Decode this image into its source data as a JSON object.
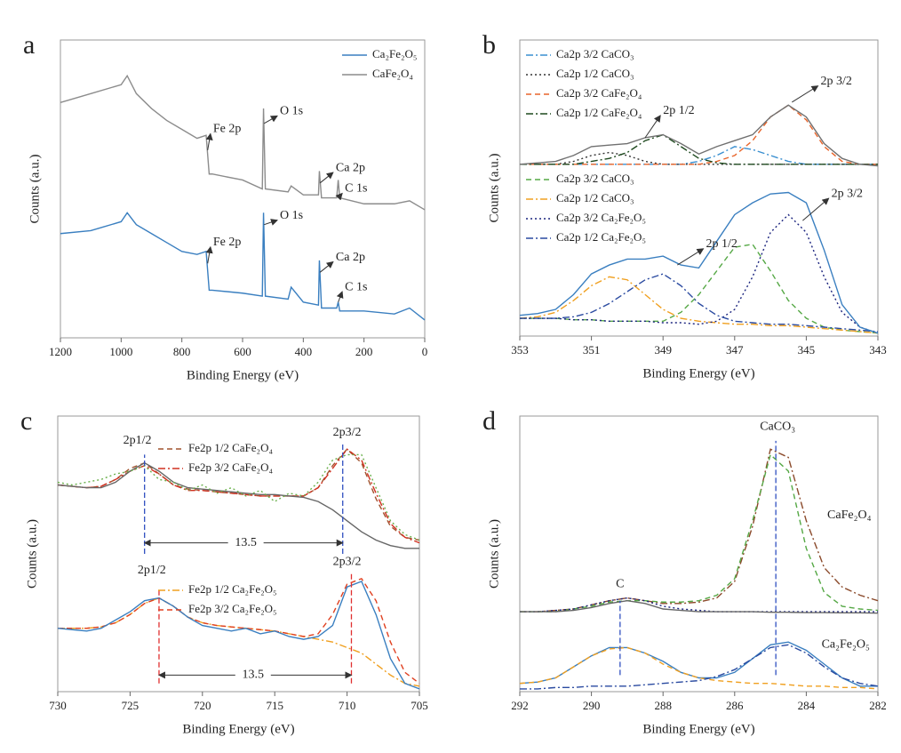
{
  "chart_data": [
    {
      "type": "line",
      "label": "a",
      "x_label": "Binding Energy (eV)",
      "y_label": "Counts (a.u.)",
      "xlim": [
        1200,
        0
      ],
      "xticks": [
        1200,
        1000,
        800,
        600,
        400,
        200,
        0
      ],
      "ylim": [
        0,
        100
      ],
      "x": [
        1200,
        1100,
        1000,
        980,
        950,
        900,
        850,
        800,
        750,
        720,
        710,
        700,
        600,
        535,
        531,
        525,
        450,
        440,
        400,
        350,
        347,
        340,
        290,
        285,
        280,
        200,
        100,
        50,
        0
      ],
      "series": [
        {
          "name": "Ca₂Fe₂O₅",
          "color": "#3a7fc0",
          "dash": "solid",
          "values": [
            35,
            36,
            39,
            42,
            38,
            35,
            32,
            29,
            28,
            29,
            16,
            16,
            15,
            14,
            42,
            14,
            13,
            17,
            12,
            11,
            26,
            10,
            10,
            12,
            9,
            9,
            8,
            10,
            6
          ]
        },
        {
          "name": "CaFe₂O₄",
          "color": "#8c8c8c",
          "dash": "solid",
          "values": [
            79,
            82,
            85,
            88,
            82,
            77,
            73,
            70,
            67,
            68,
            55,
            55,
            53,
            50,
            77,
            50,
            49,
            51,
            48,
            48,
            56,
            47,
            47,
            53,
            47,
            45,
            45,
            46,
            43
          ]
        }
      ],
      "annotations": [
        {
          "text": "Fe 2p",
          "x": 697,
          "y": 70,
          "to": [
            715,
            63
          ]
        },
        {
          "text": "O 1s",
          "x": 477,
          "y": 76,
          "to": [
            529,
            72
          ]
        },
        {
          "text": "Ca 2p",
          "x": 293,
          "y": 57,
          "to": [
            345,
            52
          ]
        },
        {
          "text": "C 1s",
          "x": 263,
          "y": 50,
          "to": [
            285,
            47
          ]
        },
        {
          "text": "Fe 2p",
          "x": 697,
          "y": 32,
          "to": [
            715,
            25
          ]
        },
        {
          "text": "O 1s",
          "x": 477,
          "y": 41,
          "to": [
            529,
            38
          ]
        },
        {
          "text": "Ca 2p",
          "x": 293,
          "y": 27,
          "to": [
            345,
            22
          ]
        },
        {
          "text": "C 1s",
          "x": 263,
          "y": 17,
          "to": [
            285,
            12
          ]
        }
      ]
    },
    {
      "type": "line",
      "label": "b",
      "x_label": "Binding Energy (eV)",
      "y_label": "Counts (a.u.)",
      "xlim": [
        353,
        343
      ],
      "xticks": [
        353,
        351,
        349,
        347,
        345,
        343
      ],
      "ylim": [
        0,
        100
      ],
      "x": [
        353,
        352.5,
        352,
        351.5,
        351,
        350.5,
        350,
        349.5,
        349,
        348.5,
        348,
        347.5,
        347,
        346.5,
        346,
        345.5,
        345,
        344.5,
        344,
        343.5,
        343
      ],
      "series": [
        {
          "name": "Ca2p 3/2 CaCO₃",
          "color": "#3a8fd0",
          "dash": "dashdot",
          "values": [
            58,
            58,
            58,
            58,
            58,
            58,
            58,
            58,
            58,
            58,
            59,
            61,
            64,
            63,
            61,
            59,
            58,
            58,
            58,
            58,
            58
          ]
        },
        {
          "name": "Ca2p 1/2 CaCO₃",
          "color": "#333333",
          "dash": "dotted",
          "values": [
            58,
            58,
            58,
            59,
            61,
            62,
            61,
            59,
            58,
            58,
            58,
            58,
            58,
            58,
            58,
            58,
            58,
            58,
            58,
            58,
            58
          ]
        },
        {
          "name": "Ca2p 3/2 CaFe₂O₄",
          "color": "#e8642a",
          "dash": "dashed",
          "values": [
            58,
            58,
            58,
            58,
            58,
            58,
            58,
            58,
            58,
            58,
            58,
            59,
            61,
            66,
            74,
            78,
            73,
            64,
            59,
            58,
            58
          ]
        },
        {
          "name": "Ca2p 1/2 CaFe₂O₄",
          "color": "#1f4a1f",
          "dash": "dashdot",
          "values": [
            58,
            58,
            58,
            58,
            59,
            60,
            62,
            66,
            68,
            64,
            60,
            58.5,
            58,
            58,
            58,
            58,
            58,
            58,
            58,
            58,
            58
          ]
        },
        {
          "name": "Ca2p 3/2 CaCO₃",
          "color": "#55a845",
          "dash": "dashed",
          "values": [
            6,
            6,
            6,
            5.5,
            5.5,
            5,
            5,
            5,
            5,
            8,
            14,
            22,
            30,
            31,
            22,
            12,
            6,
            3,
            2,
            1.5,
            1
          ]
        },
        {
          "name": "Ca2p 1/2 CaCO₃",
          "color": "#f0a020",
          "dash": "dashdot",
          "values": [
            6,
            6.5,
            8,
            12,
            17,
            20,
            19,
            14,
            9,
            6,
            5,
            4.5,
            4,
            4,
            3.5,
            3.5,
            3,
            2.5,
            2,
            1.5,
            1
          ]
        },
        {
          "name": "Ca2p 3/2 Ca₂Fe₂O₅",
          "color": "#1a237e",
          "dash": "dotted",
          "values": [
            6,
            6,
            6,
            5.5,
            5.5,
            5,
            5,
            5,
            4.5,
            4.5,
            4,
            5,
            9,
            20,
            35,
            41,
            35,
            20,
            8,
            3,
            1
          ]
        },
        {
          "name": "Ca2p 1/2 Ca₂Fe₂O₅",
          "color": "#2a4aa0",
          "dash": "dashdot",
          "values": [
            6,
            6,
            6,
            6.5,
            8,
            11,
            15,
            19,
            21,
            17,
            11,
            7,
            5,
            4.5,
            4,
            4,
            3.5,
            3,
            2.5,
            2,
            1.5
          ]
        },
        {
          "color": "#707070",
          "dash": "solid",
          "values": [
            58,
            58.5,
            59,
            61,
            64,
            64.5,
            65,
            67,
            68,
            65,
            61.5,
            64,
            66,
            68,
            74,
            78,
            74,
            65,
            60,
            58,
            57.5
          ]
        },
        {
          "color": "#3a7fc0",
          "dash": "solid",
          "values": [
            7,
            7.6,
            9,
            14,
            21,
            24,
            26,
            26,
            27,
            24,
            23,
            32,
            41,
            45,
            48,
            48.5,
            45,
            29,
            10.6,
            3,
            1
          ]
        }
      ],
      "annotations": [
        {
          "text": "2p 1/2",
          "x": 349.0,
          "y": 76,
          "to": [
            349.5,
            67
          ]
        },
        {
          "text": "2p 3/2",
          "x": 344.6,
          "y": 86,
          "to": [
            345.4,
            79
          ]
        },
        {
          "text": "2p 1/2",
          "x": 347.8,
          "y": 31,
          "to": [
            348.6,
            24
          ]
        },
        {
          "text": "2p 3/2",
          "x": 344.3,
          "y": 48,
          "to": [
            345.1,
            39
          ]
        }
      ]
    },
    {
      "type": "line",
      "label": "c",
      "x_label": "Binding Energy (eV)",
      "y_label": "Counts (a.u.)",
      "xlim": [
        730,
        705
      ],
      "xticks": [
        730,
        725,
        720,
        715,
        710,
        705
      ],
      "ylim": [
        0,
        100
      ],
      "x": [
        730,
        729,
        728,
        727,
        726,
        725,
        724,
        723,
        722,
        721,
        720,
        719,
        718,
        717,
        716,
        715,
        714,
        713,
        712,
        711,
        710,
        709,
        708,
        707,
        706,
        705
      ],
      "series": [
        {
          "name": "Fe2p 1/2 CaFe₂O₄",
          "color": "#a0522d",
          "dash": "dashed",
          "values": [
            75,
            74.5,
            74,
            74.5,
            77,
            81,
            83,
            79,
            75,
            73.5,
            73,
            72.5,
            72,
            71.5,
            71,
            71,
            71,
            71,
            74,
            82,
            88,
            83,
            70,
            60,
            56,
            55
          ]
        },
        {
          "name": "Fe2p 3/2 CaFe₂O₄",
          "color": "#d03020",
          "dash": "dashdot",
          "values": [
            75,
            74.5,
            74,
            74.5,
            77,
            80,
            82,
            79,
            75,
            73,
            73,
            72.5,
            72,
            71.5,
            71,
            71,
            71,
            71,
            74,
            81,
            88,
            84,
            72,
            61,
            56,
            54
          ]
        },
        {
          "name": "Fe2p 1/2 Ca₂Fe₂O₅",
          "color": "#f0a020",
          "dash": "dashdot",
          "values": [
            23,
            23,
            23,
            23.5,
            25,
            28,
            32,
            34,
            31,
            27,
            25,
            24,
            23.5,
            23,
            22.5,
            22,
            21,
            20,
            19,
            18,
            16,
            14,
            10,
            6,
            3,
            2
          ]
        },
        {
          "name": "Fe2p 3/2 Ca₂Fe₂O₅",
          "color": "#e04020",
          "dash": "dashed",
          "values": [
            23,
            23,
            23,
            23.5,
            25,
            28,
            32,
            34,
            31,
            27,
            25,
            24,
            23.5,
            23,
            22.5,
            22,
            21,
            20,
            21,
            28,
            39,
            41,
            33,
            18,
            7,
            3
          ]
        },
        {
          "color": "#666666",
          "dash": "solid",
          "values": [
            75,
            74.5,
            74,
            74,
            76,
            80,
            83,
            80,
            76,
            74,
            73.5,
            73,
            72.5,
            72,
            71.5,
            71.5,
            71,
            70.5,
            69,
            66,
            62,
            58,
            55,
            53,
            52,
            52
          ]
        },
        {
          "color": "#6ab04c",
          "dash": "dotted",
          "values": [
            76,
            75,
            76,
            77,
            79,
            80,
            82,
            77,
            76,
            73,
            75,
            72,
            74,
            71,
            73,
            69,
            72,
            71,
            76,
            84,
            86,
            86,
            74,
            62,
            57,
            55
          ]
        },
        {
          "color": "#3a7fc0",
          "dash": "solid",
          "values": [
            23,
            22.5,
            22,
            23,
            26,
            29,
            33,
            34,
            31,
            27,
            24,
            23,
            22,
            23,
            21,
            22,
            20,
            19,
            20,
            24,
            38,
            40,
            28,
            12,
            3,
            1
          ]
        }
      ],
      "vlines": [
        {
          "x": 724,
          "y": [
            50,
            86
          ],
          "color": "#3050c0"
        },
        {
          "x": 710.3,
          "y": [
            50,
            90
          ],
          "color": "#3050c0"
        },
        {
          "x": 723,
          "y": [
            3,
            37
          ],
          "color": "#e03030"
        },
        {
          "x": 709.7,
          "y": [
            3,
            43
          ],
          "color": "#e03030"
        }
      ],
      "annotations": [
        {
          "text": "2p1/2",
          "x": 724.5,
          "y": 91
        },
        {
          "text": "2p3/2",
          "x": 710,
          "y": 94
        },
        {
          "text": "13.5",
          "x": 717,
          "y": 54,
          "span": [
            724,
            710.3
          ]
        },
        {
          "text": "2p1/2",
          "x": 723.5,
          "y": 44
        },
        {
          "text": "2p3/2",
          "x": 710,
          "y": 47
        },
        {
          "text": "13.5",
          "x": 716.5,
          "y": 6,
          "span": [
            723,
            709.7
          ]
        }
      ]
    },
    {
      "type": "line",
      "label": "d",
      "x_label": "Binding Energy (eV)",
      "y_label": "Counts (a.u.)",
      "xlim": [
        292,
        282
      ],
      "xticks": [
        292,
        290,
        288,
        286,
        284,
        282
      ],
      "ylim": [
        0,
        100
      ],
      "x": [
        292,
        291.5,
        291,
        290.5,
        290,
        289.5,
        289,
        288.5,
        288,
        287.5,
        287,
        286.5,
        286,
        285.5,
        285,
        284.5,
        284,
        283.5,
        283,
        282.5,
        282
      ],
      "series": [
        {
          "color": "#8b4a2b",
          "dash": "dashdot",
          "values": [
            29,
            29,
            29.5,
            30,
            31.5,
            33,
            34,
            33,
            32,
            32,
            32.5,
            34,
            40,
            60,
            88,
            85,
            62,
            45,
            38,
            35,
            33
          ]
        },
        {
          "color": "#55a845",
          "dash": "dashed",
          "values": [
            29,
            29,
            29,
            30,
            31,
            32.5,
            33,
            33,
            32.5,
            32.5,
            33,
            35,
            41,
            62,
            86,
            80,
            52,
            36,
            31,
            30,
            29.5
          ]
        },
        {
          "color": "#1a237e",
          "dash": "dotted",
          "values": [
            29,
            29,
            29.5,
            30,
            31.5,
            33,
            34,
            33,
            31,
            30,
            29.5,
            29,
            29,
            29,
            29,
            29,
            29,
            29,
            29,
            29,
            29
          ]
        },
        {
          "color": "#666666",
          "dash": "solid",
          "values": [
            29,
            29,
            29,
            29.5,
            30.5,
            32,
            33,
            32,
            30,
            29.5,
            29,
            29,
            29,
            29,
            28.8,
            28.8,
            28.7,
            28.7,
            28.6,
            28.6,
            28.5
          ]
        },
        {
          "color": "#3a7fc0",
          "dash": "solid",
          "values": [
            3,
            3.5,
            5,
            9,
            13,
            16,
            16,
            14,
            11,
            7,
            5,
            5,
            7,
            12,
            17,
            18,
            15,
            10,
            5,
            2,
            2
          ]
        },
        {
          "color": "#f0a020",
          "dash": "dashed",
          "values": [
            3,
            3.5,
            5,
            9,
            13,
            15.5,
            16,
            14,
            10,
            7,
            5,
            4,
            3.5,
            3,
            3,
            2.5,
            2,
            2,
            1.5,
            1.5,
            1
          ]
        },
        {
          "color": "#2a4aa0",
          "dash": "dashdot",
          "values": [
            1,
            1,
            1.5,
            1.5,
            2,
            2,
            2,
            2.5,
            3,
            3.5,
            4,
            5.5,
            8,
            12,
            16,
            17,
            14,
            9,
            5,
            3,
            2
          ]
        }
      ],
      "vlines": [
        {
          "x": 289.2,
          "y": [
            6,
            33
          ],
          "color": "#3050c0"
        },
        {
          "x": 284.85,
          "y": [
            6,
            91
          ],
          "color": "#3050c0"
        }
      ],
      "annotations": [
        {
          "text": "CaCO₃",
          "x": 284.8,
          "y": 96
        },
        {
          "text": "C",
          "x": 289.2,
          "y": 39
        },
        {
          "text": "CaFe₂O₄",
          "x": 282.8,
          "y": 64
        },
        {
          "text": "Ca₂Fe₂O₅",
          "x": 282.9,
          "y": 17
        }
      ]
    }
  ]
}
